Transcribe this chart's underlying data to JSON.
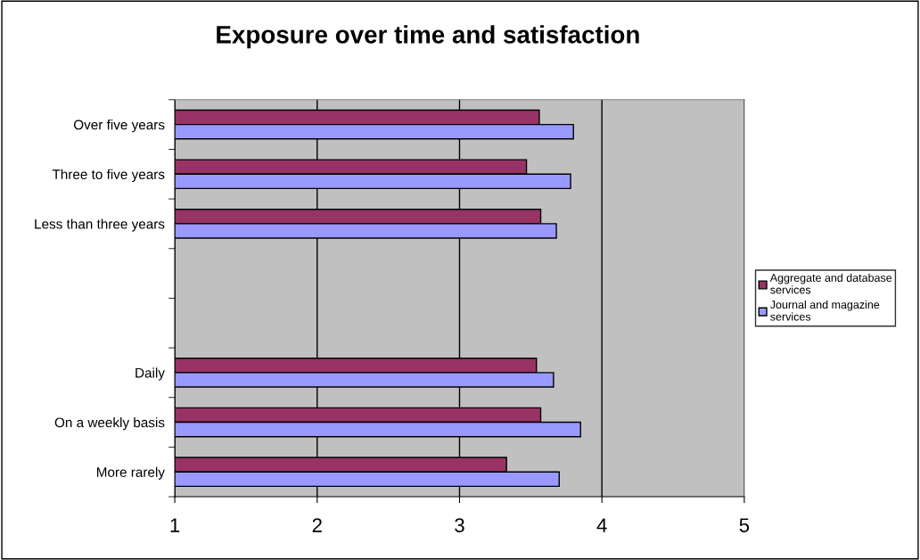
{
  "chart_data": {
    "type": "bar",
    "orientation": "horizontal",
    "title": "Exposure over time and satisfaction",
    "categories": [
      "Over five years",
      "Three to five years",
      "Less than three years",
      null,
      null,
      "Daily",
      "On a weekly basis",
      "More rarely"
    ],
    "series": [
      {
        "name": "Aggregate and database services",
        "color": "#993366",
        "values": [
          3.56,
          3.47,
          3.57,
          null,
          null,
          3.54,
          3.57,
          3.33
        ]
      },
      {
        "name": "Journal and magazine services",
        "color": "#9999ff",
        "values": [
          3.8,
          3.78,
          3.68,
          null,
          null,
          3.66,
          3.85,
          3.7
        ]
      }
    ],
    "xlim": [
      1,
      5
    ],
    "xticks": [
      1,
      2,
      3,
      4,
      5
    ],
    "grid": "x",
    "legend": "right"
  }
}
